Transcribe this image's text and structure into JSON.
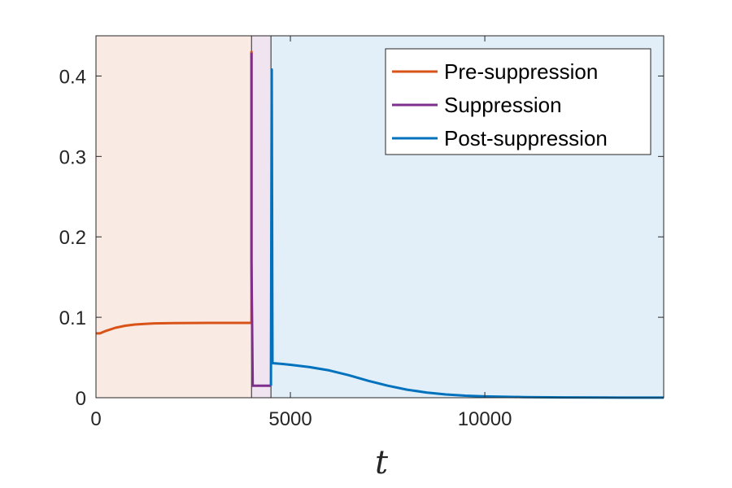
{
  "chart_data": {
    "type": "line",
    "title": "",
    "xlabel": "t",
    "ylabel": "",
    "xlim": [
      0,
      14600
    ],
    "ylim": [
      0,
      0.45
    ],
    "xticks": [
      0,
      5000,
      10000
    ],
    "xtick_labels": [
      "0",
      "5000",
      "10000"
    ],
    "yticks": [
      0,
      0.1,
      0.2,
      0.3,
      0.4
    ],
    "ytick_labels": [
      "0",
      "0.1",
      "0.2",
      "0.3",
      "0.4"
    ],
    "grid": false,
    "legend_position": "top-right",
    "regions": [
      {
        "name": "Pre-suppression",
        "x": [
          0,
          4000
        ],
        "color": "#f9ebe4"
      },
      {
        "name": "Suppression",
        "x": [
          4000,
          4500
        ],
        "color": "#f0e4f0"
      },
      {
        "name": "Post-suppression",
        "x": [
          4500,
          14600
        ],
        "color": "#e2eff8"
      }
    ],
    "series": [
      {
        "name": "Pre-suppression",
        "color": "#d95319",
        "x": [
          0,
          100,
          250,
          500,
          750,
          1000,
          1250,
          1500,
          2000,
          2500,
          3000,
          3500,
          4000,
          4000
        ],
        "y": [
          0.08,
          0.08,
          0.083,
          0.087,
          0.0895,
          0.091,
          0.0918,
          0.0924,
          0.0928,
          0.0929,
          0.093,
          0.093,
          0.093,
          0.431
        ]
      },
      {
        "name": "Suppression",
        "color": "#7e2f8e",
        "x": [
          4000,
          4000,
          4030,
          4500
        ],
        "y": [
          0.429,
          0.17,
          0.015,
          0.015
        ]
      },
      {
        "name": "Post-suppression",
        "color": "#0072bd",
        "x": [
          4500,
          4520,
          4540,
          4800,
          5000,
          5500,
          6000,
          6500,
          7000,
          7500,
          8000,
          8500,
          9000,
          9500,
          10000,
          11000,
          12000,
          13000,
          14600
        ],
        "y": [
          0.015,
          0.408,
          0.043,
          0.042,
          0.041,
          0.038,
          0.034,
          0.028,
          0.021,
          0.015,
          0.01,
          0.0065,
          0.004,
          0.0025,
          0.0016,
          0.0008,
          0.0004,
          0.0002,
          0.0001
        ]
      }
    ]
  }
}
